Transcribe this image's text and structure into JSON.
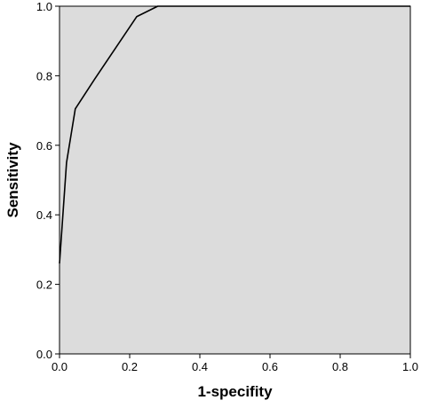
{
  "chart_data": {
    "type": "line",
    "title": "",
    "xlabel": "1-specifity",
    "ylabel": "Sensitivity",
    "xlim": [
      0.0,
      1.0
    ],
    "ylim": [
      0.0,
      1.0
    ],
    "grid": false,
    "legend": "none",
    "x_ticks": [
      "0.0",
      "0.2",
      "0.4",
      "0.6",
      "0.8",
      "1.0"
    ],
    "y_ticks": [
      "0.0",
      "0.2",
      "0.4",
      "0.6",
      "0.8",
      "1.0"
    ],
    "series": [
      {
        "x": [
          0.0,
          0.02,
          0.045,
          0.1,
          0.16,
          0.22,
          0.28,
          1.0
        ],
        "y": [
          0.26,
          0.55,
          0.705,
          0.79,
          0.88,
          0.97,
          1.0,
          1.0
        ]
      }
    ],
    "colors": {
      "plot_background": "#dcdcdc",
      "line": "#000000",
      "axis": "#000000"
    }
  }
}
